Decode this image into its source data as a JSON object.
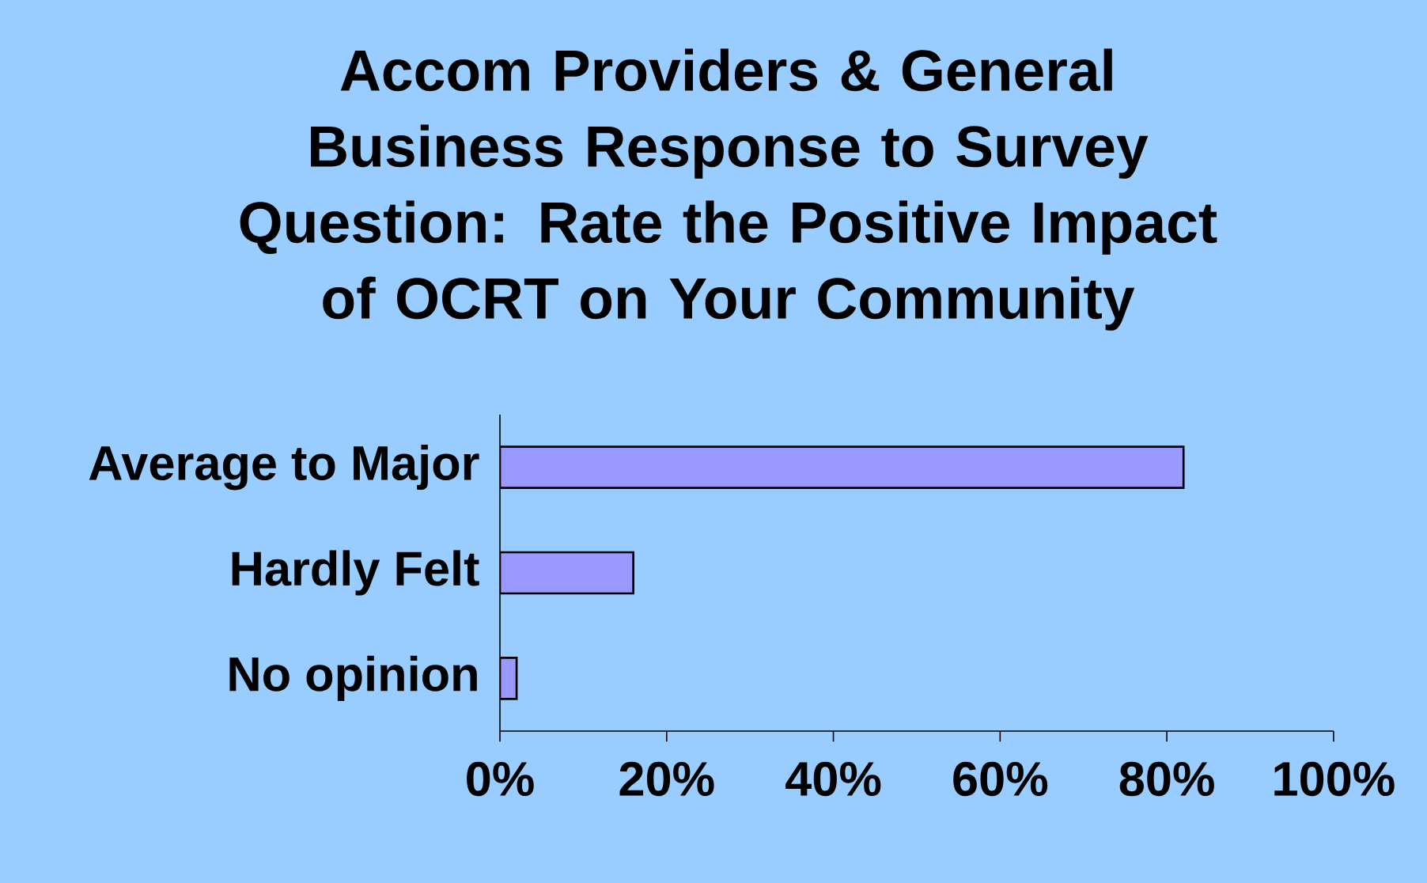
{
  "chart_data": {
    "type": "bar",
    "orientation": "horizontal",
    "title": "Accom Providers & General Business Response to Survey Question: Rate the Positive Impact of OCRT on Your Community",
    "categories": [
      "Average to Major",
      "Hardly Felt",
      "No opinion"
    ],
    "values": [
      82,
      16,
      2
    ],
    "color": "#9999ff",
    "xlim": [
      0,
      100
    ],
    "xticks": [
      {
        "value": 0,
        "label": "0%"
      },
      {
        "value": 20,
        "label": "20%"
      },
      {
        "value": 40,
        "label": "40%"
      },
      {
        "value": 60,
        "label": "60%"
      },
      {
        "value": 80,
        "label": "80%"
      },
      {
        "value": 100,
        "label": "100%"
      }
    ],
    "grid": false
  }
}
